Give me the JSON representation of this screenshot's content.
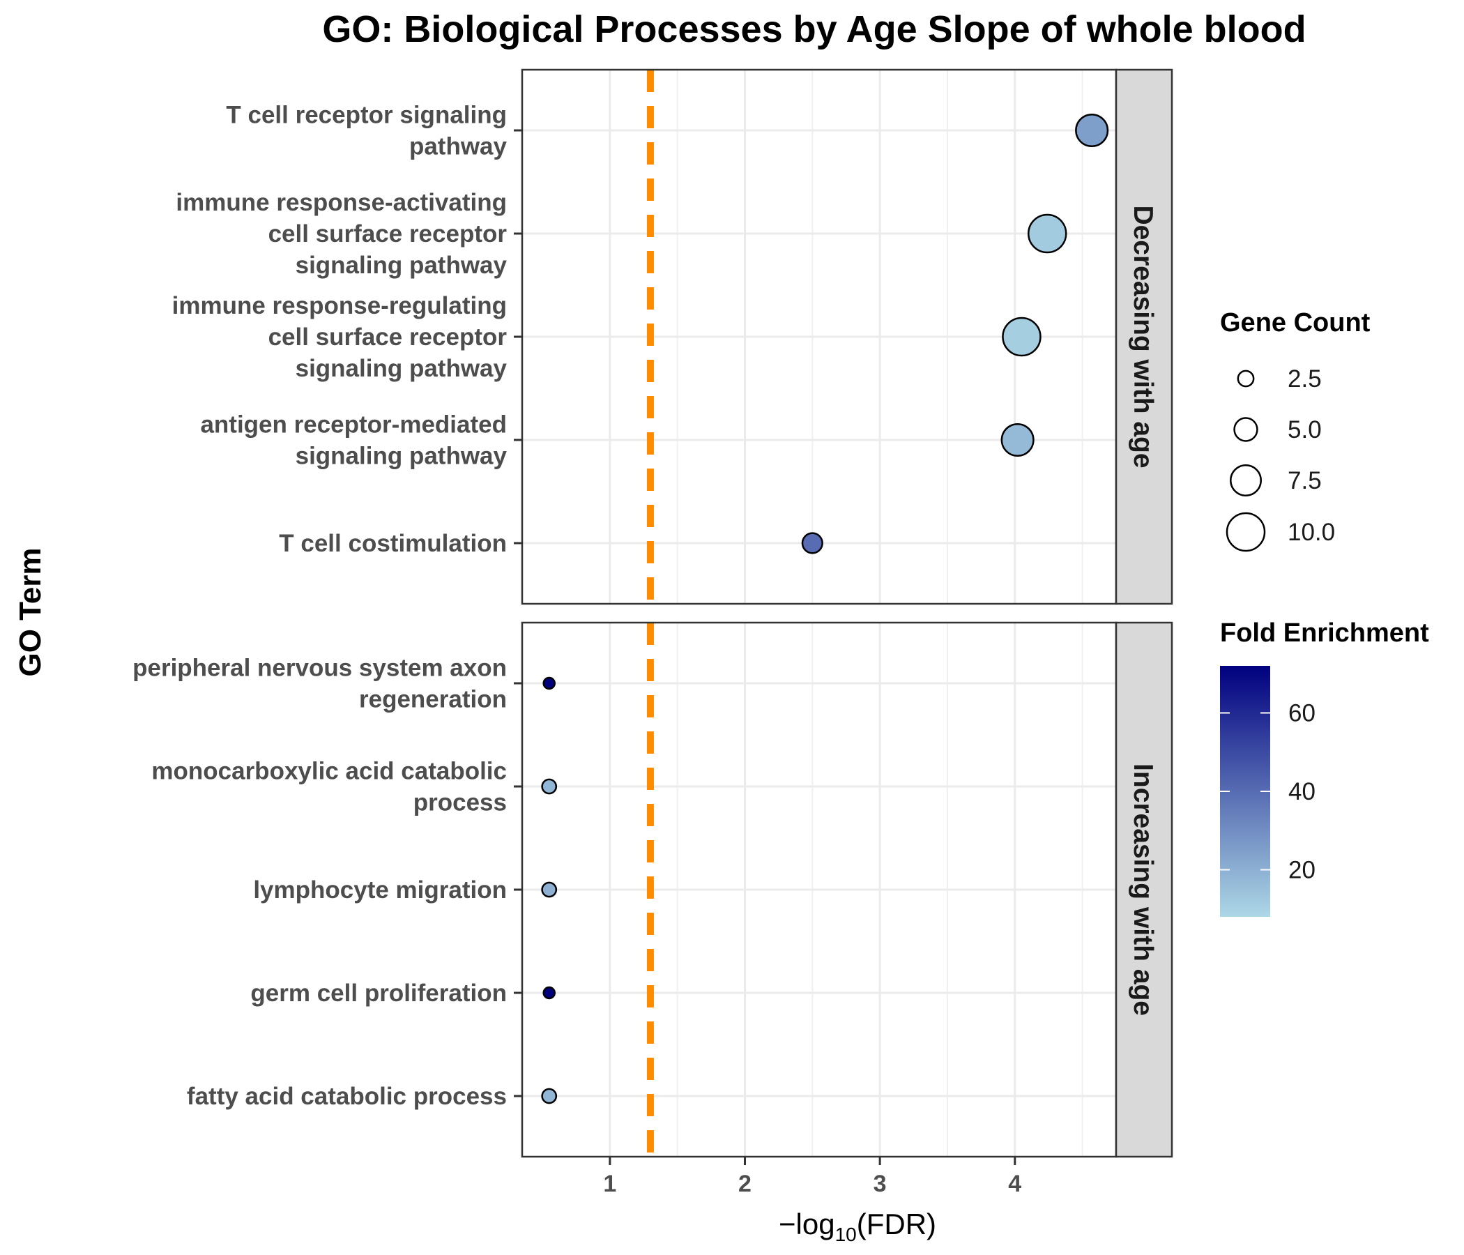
{
  "chart_data": {
    "type": "scatter",
    "title": "GO: Biological Processes by Age Slope of whole blood",
    "xlabel_prefix": "−log",
    "xlabel_sub": "10",
    "xlabel_suffix": "(FDR)",
    "ylabel": "GO Term",
    "xlim": [
      0.35,
      4.75
    ],
    "x_ticks": [
      1,
      2,
      3,
      4
    ],
    "x_tick_labels": [
      "1",
      "2",
      "3",
      "4"
    ],
    "threshold_line_x": 1.3,
    "threshold_color": "#ff8c00",
    "grid": true,
    "panels": [
      {
        "strip_label": "Decreasing with age",
        "terms": [
          {
            "label_lines": [
              "T cell receptor signaling",
              "pathway"
            ],
            "x": 4.57,
            "gene_count": 8,
            "fold_enrichment": 25
          },
          {
            "label_lines": [
              "immune response-activating",
              "cell surface receptor",
              "signaling pathway"
            ],
            "x": 4.24,
            "gene_count": 10,
            "fold_enrichment": 12
          },
          {
            "label_lines": [
              "immune response-regulating",
              "cell surface receptor",
              "signaling pathway"
            ],
            "x": 4.05,
            "gene_count": 10,
            "fold_enrichment": 11
          },
          {
            "label_lines": [
              "antigen receptor-mediated",
              "signaling pathway"
            ],
            "x": 4.02,
            "gene_count": 8,
            "fold_enrichment": 17
          },
          {
            "label_lines": [
              "T cell costimulation"
            ],
            "x": 2.5,
            "gene_count": 4,
            "fold_enrichment": 40
          }
        ]
      },
      {
        "strip_label": "Increasing with age",
        "terms": [
          {
            "label_lines": [
              "peripheral nervous system axon",
              "regeneration"
            ],
            "x": 0.55,
            "gene_count": 1,
            "fold_enrichment": 72
          },
          {
            "label_lines": [
              "monocarboxylic acid catabolic",
              "process"
            ],
            "x": 0.55,
            "gene_count": 2,
            "fold_enrichment": 18
          },
          {
            "label_lines": [
              "lymphocyte migration"
            ],
            "x": 0.55,
            "gene_count": 2,
            "fold_enrichment": 20
          },
          {
            "label_lines": [
              "germ cell proliferation"
            ],
            "x": 0.55,
            "gene_count": 1,
            "fold_enrichment": 72
          },
          {
            "label_lines": [
              "fatty acid catabolic process"
            ],
            "x": 0.55,
            "gene_count": 2,
            "fold_enrichment": 18
          }
        ]
      }
    ],
    "legend": {
      "placement": "right",
      "size_title": "Gene Count",
      "size_breaks": [
        2.5,
        5.0,
        7.5,
        10.0
      ],
      "size_labels": [
        "2.5",
        "5.0",
        "7.5",
        "10.0"
      ],
      "size_range": [
        1,
        10
      ],
      "color_title": "Fold Enrichment",
      "color_range": [
        8,
        72
      ],
      "color_ticks": [
        20,
        40,
        60
      ],
      "color_tick_labels": [
        "20",
        "40",
        "60"
      ],
      "color_low": "#add8e6",
      "color_high": "#00007f"
    }
  }
}
